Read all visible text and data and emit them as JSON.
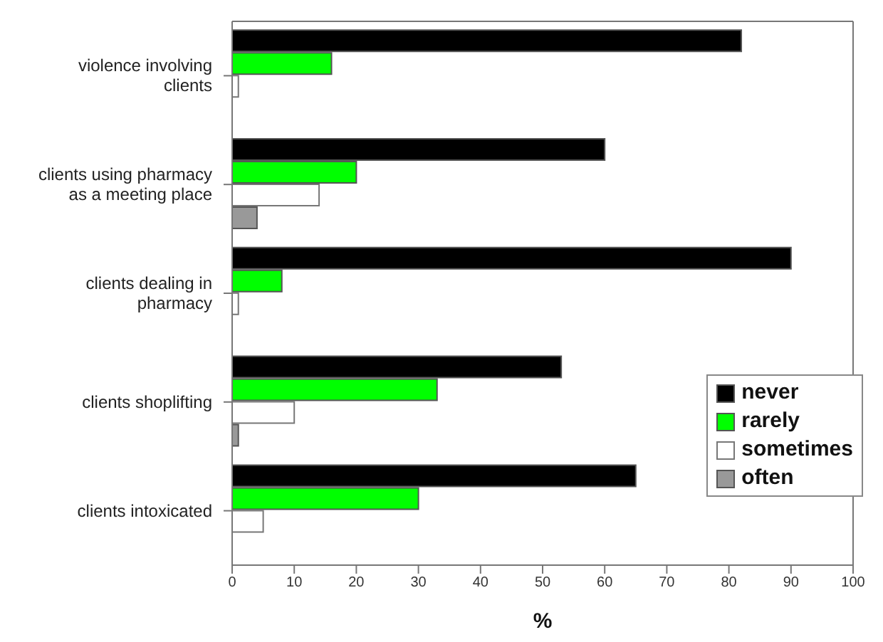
{
  "chart_data": {
    "type": "bar",
    "orientation": "horizontal",
    "xlabel": "%",
    "categories": [
      "violence involving clients",
      "clients using pharmacy as a meeting place",
      "clients dealing in pharmacy",
      "clients shoplifting",
      "clients intoxicated"
    ],
    "series": [
      {
        "name": "never",
        "color": "#000000",
        "values": [
          82,
          60,
          90,
          53,
          65
        ]
      },
      {
        "name": "rarely",
        "color": "#00ff00",
        "values": [
          16,
          20,
          8,
          33,
          30
        ]
      },
      {
        "name": "sometimes",
        "color": "#ffffff",
        "values": [
          1,
          14,
          1,
          10,
          5
        ]
      },
      {
        "name": "often",
        "color": "#999999",
        "values": [
          0,
          4,
          0,
          1,
          0
        ]
      }
    ],
    "xlim": [
      0,
      100
    ],
    "xticks": [
      0,
      10,
      20,
      30,
      40,
      50,
      60,
      70,
      80,
      90,
      100
    ],
    "grid": false,
    "legend": "right"
  }
}
